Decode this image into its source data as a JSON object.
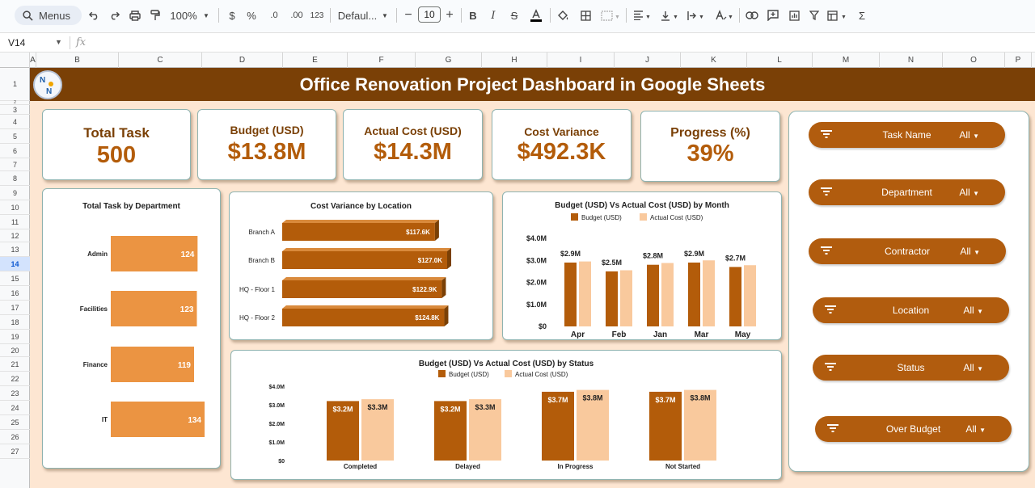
{
  "toolbar": {
    "menus_label": "Menus",
    "zoom": "100%",
    "currency": "$",
    "percent": "%",
    "decrease_decimals": ".0",
    "increase_decimals": ".00",
    "number_format": "123",
    "font": "Defaul...",
    "font_size": "10"
  },
  "formula_bar": {
    "cell_ref": "V14",
    "fx": "fx"
  },
  "columns": [
    "A",
    "B",
    "C",
    "D",
    "E",
    "F",
    "G",
    "H",
    "I",
    "J",
    "K",
    "L",
    "M",
    "N",
    "O",
    "P"
  ],
  "rows": [
    "1",
    "2",
    "3",
    "4",
    "5",
    "6",
    "7",
    "8",
    "9",
    "10",
    "11",
    "12",
    "13",
    "14",
    "15",
    "16",
    "17",
    "18",
    "19",
    "20",
    "21",
    "22",
    "23",
    "24",
    "25",
    "26",
    "27"
  ],
  "selected_row": "14",
  "dashboard": {
    "title": "Office Renovation Project Dashboard in Google Sheets",
    "logo_letters": "N N"
  },
  "kpis": [
    {
      "label": "Total Task",
      "value": "500"
    },
    {
      "label": "Budget (USD)",
      "value": "$13.8M"
    },
    {
      "label": "Actual Cost (USD)",
      "value": "$14.3M"
    },
    {
      "label": "Cost Variance",
      "value": "$492.3K"
    },
    {
      "label": "Progress (%)",
      "value": "39%"
    }
  ],
  "filters": [
    {
      "label": "Task Name",
      "value": "All"
    },
    {
      "label": "Department",
      "value": "All"
    },
    {
      "label": "Contractor",
      "value": "All"
    },
    {
      "label": "Location",
      "value": "All"
    },
    {
      "label": "Status",
      "value": "All"
    },
    {
      "label": "Over Budget",
      "value": "All"
    }
  ],
  "colors": {
    "dark_brown": "#7a4006",
    "budget": "#b35c0a",
    "actual": "#f9c99d",
    "dept_bar": "#eb9442",
    "variance_bar": "#b35c0a",
    "background": "#fde6d2"
  },
  "chart_data": [
    {
      "type": "bar",
      "orientation": "horizontal",
      "title": "Total Task by Department",
      "categories": [
        "Admin",
        "Facilities",
        "Finance",
        "IT"
      ],
      "values": [
        124,
        123,
        119,
        134
      ],
      "data_labels": [
        "124",
        "123",
        "119",
        "134"
      ]
    },
    {
      "type": "bar",
      "orientation": "horizontal",
      "title": "Cost Variance by Location",
      "categories": [
        "Branch A",
        "Branch B",
        "HQ - Floor 1",
        "HQ - Floor 2"
      ],
      "values": [
        117.6,
        127.0,
        122.9,
        124.8
      ],
      "data_labels": [
        "$117.6K",
        "$127.0K",
        "$122.9K",
        "$124.8K"
      ]
    },
    {
      "type": "bar",
      "title": "Budget (USD) Vs Actual Cost (USD) by Month",
      "categories": [
        "Apr",
        "Feb",
        "Jan",
        "Mar",
        "May"
      ],
      "series": [
        {
          "name": "Budget (USD)",
          "values": [
            2.9,
            2.5,
            2.8,
            2.9,
            2.7
          ],
          "labels": [
            "$2.9M",
            "$2.5M",
            "$2.8M",
            "$2.9M",
            "$2.7M"
          ]
        },
        {
          "name": "Actual Cost (USD)",
          "values": [
            2.95,
            2.55,
            2.88,
            3.0,
            2.78
          ]
        }
      ],
      "yticks": [
        "$0",
        "$1.0M",
        "$2.0M",
        "$3.0M",
        "$4.0M"
      ],
      "ylim": [
        0,
        4
      ],
      "legend": "top"
    },
    {
      "type": "bar",
      "title": "Budget (USD) Vs Actual Cost (USD) by Status",
      "categories": [
        "Completed",
        "Delayed",
        "In Progress",
        "Not Started"
      ],
      "series": [
        {
          "name": "Budget (USD)",
          "values": [
            3.2,
            3.2,
            3.7,
            3.7
          ],
          "labels": [
            "$3.2M",
            "$3.2M",
            "$3.7M",
            "$3.7M"
          ]
        },
        {
          "name": "Actual Cost (USD)",
          "values": [
            3.3,
            3.3,
            3.8,
            3.8
          ],
          "labels": [
            "$3.3M",
            "$3.3M",
            "$3.8M",
            "$3.8M"
          ]
        }
      ],
      "yticks": [
        "$0",
        "$1.0M",
        "$2.0M",
        "$3.0M",
        "$4.0M"
      ],
      "ylim": [
        0,
        4
      ],
      "legend": "top"
    }
  ]
}
